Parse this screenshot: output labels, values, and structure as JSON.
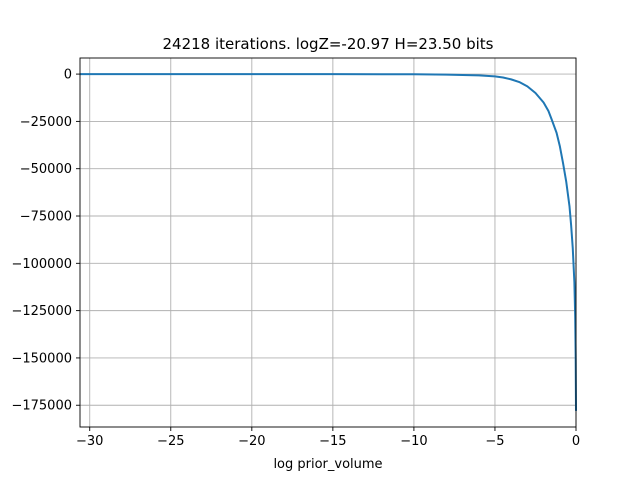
{
  "chart_data": {
    "type": "line",
    "title": "24218 iterations. logZ=-20.97 H=23.50 bits",
    "xlabel": "log prior_volume",
    "ylabel": "",
    "xlim": [
      -30.6,
      0.0
    ],
    "ylim": [
      -186500,
      8500
    ],
    "xticks": [
      -30,
      -25,
      -20,
      -15,
      -10,
      -5,
      0
    ],
    "xtick_labels": [
      "−30",
      "−25",
      "−20",
      "−15",
      "−10",
      "−5",
      "0"
    ],
    "yticks": [
      0,
      -25000,
      -50000,
      -75000,
      -100000,
      -125000,
      -150000,
      -175000
    ],
    "ytick_labels": [
      "0",
      "−25000",
      "−50000",
      "−75000",
      "−100000",
      "−125000",
      "−150000",
      "−175000"
    ],
    "grid": true,
    "line_color": "#1f77b4",
    "series": [
      {
        "x": [
          -30.6,
          -25,
          -20,
          -15,
          -10,
          -8,
          -6,
          -5,
          -4.5,
          -4,
          -3.5,
          -3,
          -2.5,
          -2,
          -1.7,
          -1.5,
          -1.2,
          -1.0,
          -0.8,
          -0.6,
          -0.4,
          -0.3,
          -0.2,
          -0.1,
          -0.05,
          -0.02,
          0.0
        ],
        "y": [
          0,
          0,
          0,
          0,
          -100,
          -300,
          -700,
          -1200,
          -1800,
          -2800,
          -4200,
          -6500,
          -10000,
          -15000,
          -19500,
          -24000,
          -31000,
          -38000,
          -47000,
          -57000,
          -70000,
          -80000,
          -92000,
          -110000,
          -128000,
          -150000,
          -178000
        ]
      }
    ]
  }
}
